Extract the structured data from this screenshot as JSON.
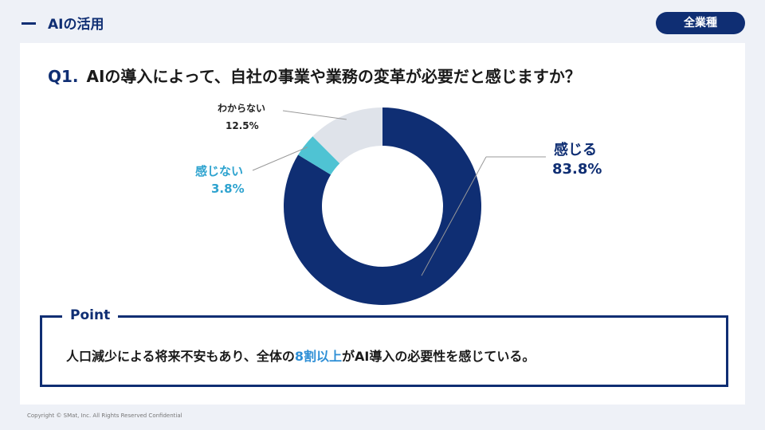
{
  "header": {
    "section_title": "AIの活用",
    "segment_label": "全業種"
  },
  "question": {
    "number": "Q1.",
    "text": "AIの導入によって、自社の事業や業務の変革が必要だと感じますか？"
  },
  "colors": {
    "primary": "#0f2e73",
    "teal": "#4fc3d3",
    "gray": "#dfe3ea",
    "accent_blue": "#2e8fd6"
  },
  "chart_data": {
    "type": "pie",
    "variant": "donut",
    "slices": [
      {
        "label": "感じる",
        "value": 83.8,
        "value_label": "83.8%",
        "color": "#0f2e73"
      },
      {
        "label": "感じない",
        "value": 3.8,
        "value_label": "3.8%",
        "color": "#4fc3d3"
      },
      {
        "label": "わからない",
        "value": 12.5,
        "value_label": "12.5%",
        "color": "#dfe3ea"
      }
    ]
  },
  "point": {
    "label": "Point",
    "text_before": "人口減少による将来不安もあり、全体の",
    "text_highlight": "8割以上",
    "text_after": "がAI導入の必要性を感じている。"
  },
  "footer": {
    "copyright": "Copyright © SMat, Inc. All Rights Reserved Confidential"
  }
}
